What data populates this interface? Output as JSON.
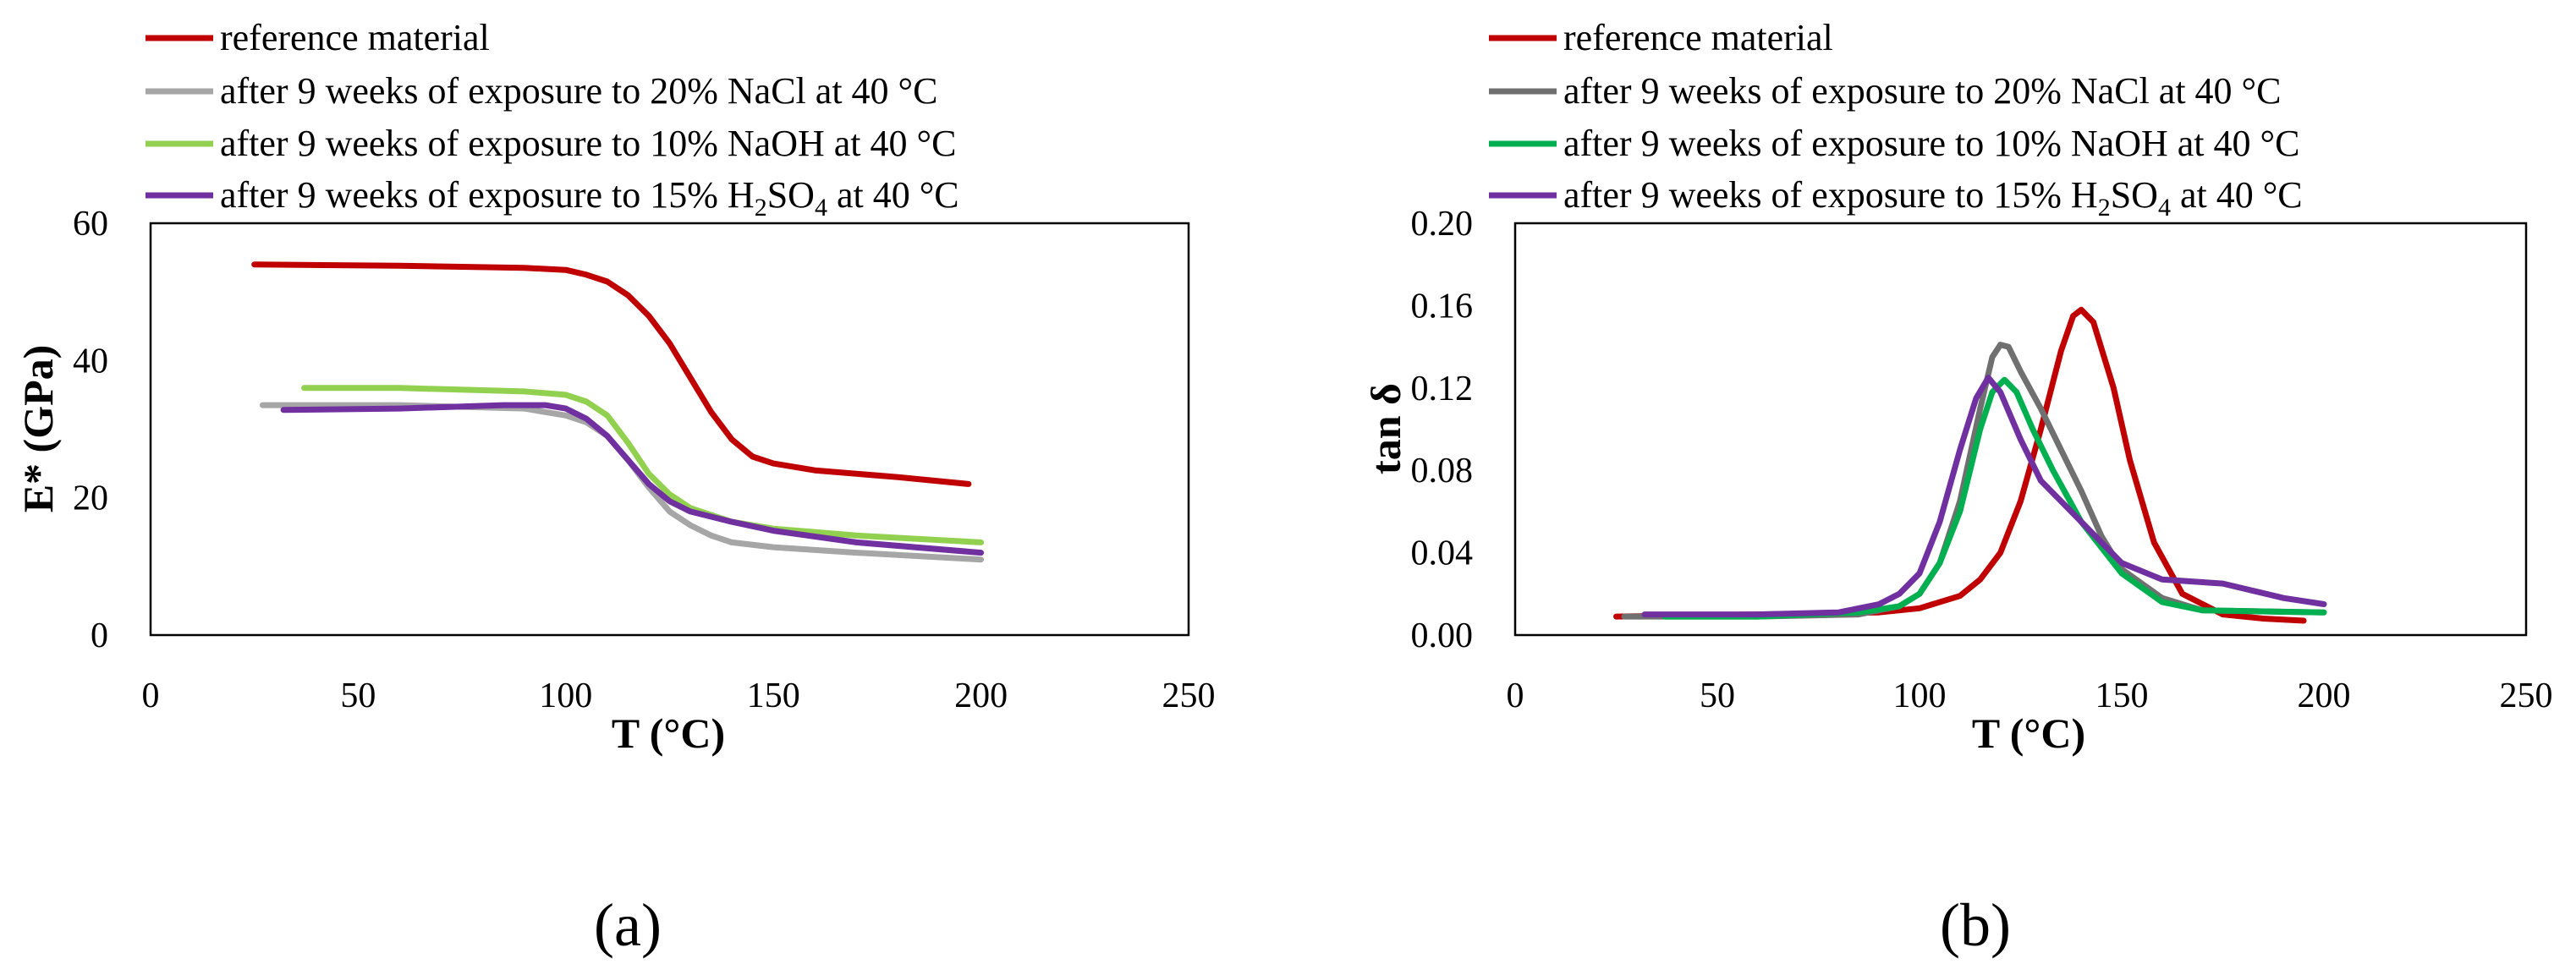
{
  "colors": {
    "reference": "#C00000",
    "nacl_a": "#A6A6A6",
    "naoh_a": "#92D050",
    "h2so4": "#7030A0",
    "nacl_b": "#707070",
    "naoh_b": "#00B050"
  },
  "legend": [
    {
      "key": "reference",
      "label": "reference material"
    },
    {
      "key": "nacl",
      "label": "after 9 weeks of exposure to 20% NaCl at 40 °C"
    },
    {
      "key": "naoh",
      "label": "after 9 weeks of exposure to 10% NaOH at 40 °C"
    },
    {
      "key": "h2so4",
      "label_pre": "after 9 weeks of exposure to 15% H",
      "sub1": "2",
      "label_mid": "SO",
      "sub2": "4",
      "label_post": " at 40 °C"
    }
  ],
  "chart_data": [
    {
      "type": "line",
      "panel_label": "(a)",
      "xlabel": "T (°C)",
      "ylabel": "E* (GPa)",
      "xlim": [
        0,
        250
      ],
      "ylim": [
        0,
        60
      ],
      "xticks": [
        0,
        50,
        100,
        150,
        200,
        250
      ],
      "yticks": [
        0,
        20,
        40,
        60
      ],
      "ytick_labels": [
        "0",
        "20",
        "40",
        "60"
      ],
      "series": [
        {
          "name": "reference material",
          "color": "#C00000",
          "x": [
            25,
            60,
            90,
            100,
            105,
            110,
            115,
            120,
            125,
            130,
            135,
            140,
            145,
            150,
            160,
            180,
            197
          ],
          "y": [
            54,
            53.8,
            53.5,
            53.2,
            52.5,
            51.5,
            49.5,
            46.5,
            42.5,
            37.5,
            32.5,
            28.5,
            26,
            25,
            24,
            23,
            22
          ]
        },
        {
          "name": "after 9 weeks of exposure to 20% NaCl at 40 °C",
          "color": "#A6A6A6",
          "x": [
            27,
            60,
            90,
            100,
            105,
            110,
            115,
            120,
            125,
            130,
            135,
            140,
            150,
            170,
            200
          ],
          "y": [
            33.5,
            33.5,
            33,
            32,
            31,
            29,
            25.5,
            21.5,
            18,
            16,
            14.5,
            13.5,
            12.8,
            12,
            11
          ]
        },
        {
          "name": "after 9 weeks of exposure to 10% NaOH at 40 °C",
          "color": "#92D050",
          "x": [
            37,
            60,
            90,
            100,
            105,
            110,
            115,
            120,
            125,
            130,
            140,
            150,
            170,
            200
          ],
          "y": [
            36,
            36,
            35.5,
            35,
            34,
            32,
            28,
            23.5,
            20.5,
            18.5,
            16.5,
            15.5,
            14.5,
            13.5
          ]
        },
        {
          "name": "after 9 weeks of exposure to 15% H2SO4 at 40 °C",
          "color": "#7030A0",
          "x": [
            32,
            60,
            85,
            95,
            100,
            105,
            110,
            115,
            120,
            125,
            130,
            140,
            150,
            170,
            200
          ],
          "y": [
            32.8,
            33,
            33.5,
            33.5,
            33,
            31.5,
            29,
            25.5,
            22,
            19.5,
            18,
            16.5,
            15.2,
            13.5,
            12
          ]
        }
      ]
    },
    {
      "type": "line",
      "panel_label": "(b)",
      "xlabel": "T (°C)",
      "ylabel": "tan δ",
      "xlim": [
        0,
        250
      ],
      "ylim": [
        0,
        0.2
      ],
      "xticks": [
        0,
        50,
        100,
        150,
        200,
        250
      ],
      "yticks": [
        0,
        0.04,
        0.08,
        0.12,
        0.16,
        0.2
      ],
      "ytick_labels": [
        "0.00",
        "0.04",
        "0.08",
        "0.12",
        "0.16",
        "0.20"
      ],
      "series": [
        {
          "name": "reference material",
          "color": "#C00000",
          "x": [
            25,
            60,
            90,
            100,
            110,
            115,
            120,
            125,
            130,
            135,
            138,
            140,
            143,
            148,
            152,
            158,
            165,
            175,
            185,
            195
          ],
          "y": [
            0.009,
            0.01,
            0.011,
            0.013,
            0.019,
            0.027,
            0.04,
            0.065,
            0.1,
            0.138,
            0.155,
            0.158,
            0.152,
            0.12,
            0.085,
            0.045,
            0.02,
            0.01,
            0.008,
            0.007
          ]
        },
        {
          "name": "after 9 weeks of exposure to 20% NaCl at 40 °C",
          "color": "#707070",
          "x": [
            27,
            60,
            85,
            95,
            100,
            105,
            110,
            115,
            118,
            120,
            122,
            125,
            130,
            135,
            140,
            145,
            150,
            160,
            170,
            200
          ],
          "y": [
            0.009,
            0.009,
            0.01,
            0.014,
            0.02,
            0.035,
            0.065,
            0.11,
            0.135,
            0.141,
            0.14,
            0.128,
            0.11,
            0.09,
            0.07,
            0.048,
            0.032,
            0.018,
            0.012,
            0.011
          ]
        },
        {
          "name": "after 9 weeks of exposure to 10% NaOH at 40 °C",
          "color": "#00B050",
          "x": [
            37,
            60,
            85,
            95,
            100,
            105,
            110,
            115,
            118,
            121,
            124,
            128,
            133,
            140,
            150,
            160,
            170,
            200
          ],
          "y": [
            0.009,
            0.009,
            0.011,
            0.014,
            0.02,
            0.035,
            0.06,
            0.1,
            0.118,
            0.124,
            0.118,
            0.1,
            0.08,
            0.055,
            0.03,
            0.016,
            0.012,
            0.011
          ]
        },
        {
          "name": "after 9 weeks of exposure to 15% H2SO4 at 40 °C",
          "color": "#7030A0",
          "x": [
            32,
            60,
            80,
            90,
            95,
            100,
            105,
            110,
            114,
            117,
            120,
            125,
            130,
            140,
            150,
            160,
            175,
            190,
            200
          ],
          "y": [
            0.01,
            0.01,
            0.011,
            0.015,
            0.02,
            0.03,
            0.055,
            0.09,
            0.115,
            0.125,
            0.118,
            0.095,
            0.075,
            0.055,
            0.035,
            0.027,
            0.025,
            0.018,
            0.015
          ]
        }
      ]
    }
  ]
}
